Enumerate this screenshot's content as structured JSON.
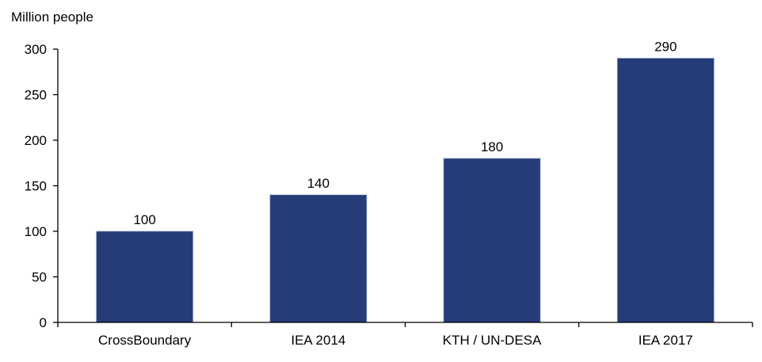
{
  "chart_data": {
    "type": "bar",
    "ylabel": "Million people",
    "categories": [
      "CrossBoundary",
      "IEA 2014",
      "KTH / UN-DESA",
      "IEA 2017"
    ],
    "values": [
      100,
      140,
      180,
      290
    ],
    "data_labels": [
      "100",
      "140",
      "180",
      "290"
    ],
    "ylim": [
      0,
      300
    ],
    "yticks": [
      0,
      50,
      100,
      150,
      200,
      250,
      300
    ],
    "grid": false,
    "legend": "none",
    "bar_color": "#253C78",
    "bar_border_color": "#8C9BC0"
  }
}
